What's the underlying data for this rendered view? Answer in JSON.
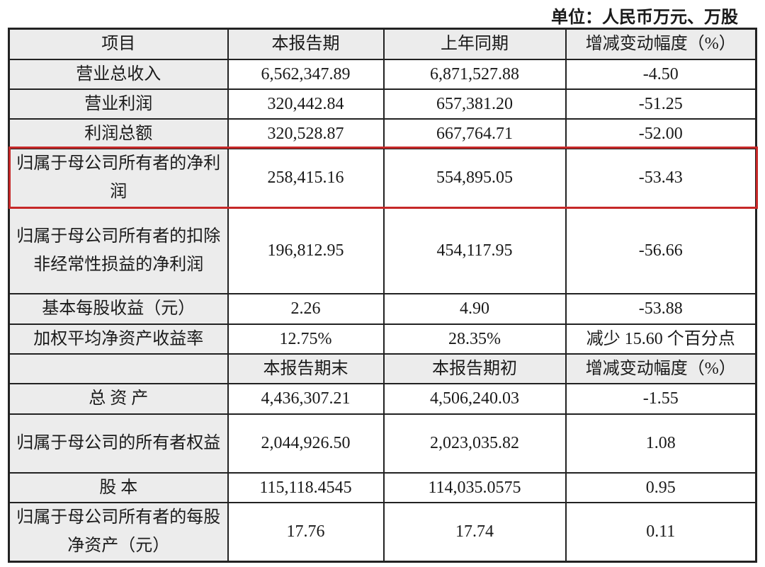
{
  "unit_label": "单位：人民币万元、万股",
  "highlight_color": "#c62828",
  "header": [
    "项目",
    "本报告期",
    "上年同期",
    "增减变动幅度（%）"
  ],
  "rows": [
    [
      "营业总收入",
      "6,562,347.89",
      "6,871,527.88",
      "-4.50"
    ],
    [
      "营业利润",
      "320,442.84",
      "657,381.20",
      "-51.25"
    ],
    [
      "利润总额",
      "320,528.87",
      "667,764.71",
      "-52.00"
    ],
    [
      "归属于母公司所有者的净利润",
      "258,415.16",
      "554,895.05",
      "-53.43"
    ],
    [
      "归属于母公司所有者的扣除非经常性损益的净利润",
      "196,812.95",
      "454,117.95",
      "-56.66"
    ],
    [
      "基本每股收益（元）",
      "2.26",
      "4.90",
      "-53.88"
    ],
    [
      "加权平均净资产收益率",
      "12.75%",
      "28.35%",
      "减少 15.60 个百分点"
    ]
  ],
  "header2": [
    "",
    "本报告期末",
    "本报告期初",
    "增减变动幅度（%）"
  ],
  "rows2": [
    [
      "总 资 产",
      "4,436,307.21",
      "4,506,240.03",
      "-1.55"
    ],
    [
      "归属于母公司的所有者权益",
      "2,044,926.50",
      "2,023,035.82",
      "1.08"
    ],
    [
      "股 本",
      "115,118.4545",
      "114,035.0575",
      "0.95"
    ],
    [
      "归属于母公司所有者的每股净资产（元）",
      "17.76",
      "17.74",
      "0.11"
    ]
  ]
}
